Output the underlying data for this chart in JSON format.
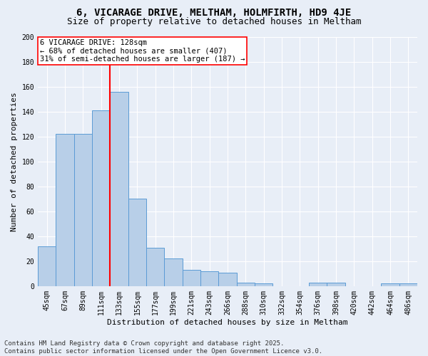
{
  "title": "6, VICARAGE DRIVE, MELTHAM, HOLMFIRTH, HD9 4JE",
  "subtitle": "Size of property relative to detached houses in Meltham",
  "xlabel": "Distribution of detached houses by size in Meltham",
  "ylabel": "Number of detached properties",
  "categories": [
    "45sqm",
    "67sqm",
    "89sqm",
    "111sqm",
    "133sqm",
    "155sqm",
    "177sqm",
    "199sqm",
    "221sqm",
    "243sqm",
    "266sqm",
    "288sqm",
    "310sqm",
    "332sqm",
    "354sqm",
    "376sqm",
    "398sqm",
    "420sqm",
    "442sqm",
    "464sqm",
    "486sqm"
  ],
  "values": [
    32,
    122,
    122,
    141,
    156,
    70,
    31,
    22,
    13,
    12,
    11,
    3,
    2,
    0,
    0,
    3,
    3,
    0,
    0,
    2,
    2
  ],
  "bar_color": "#b8cfe8",
  "bar_edge_color": "#5b9bd5",
  "vline_x_index": 4,
  "vline_color": "red",
  "annotation_line1": "6 VICARAGE DRIVE: 128sqm",
  "annotation_line2": "← 68% of detached houses are smaller (407)",
  "annotation_line3": "31% of semi-detached houses are larger (187) →",
  "annotation_box_color": "white",
  "annotation_box_edge": "red",
  "ylim": [
    0,
    200
  ],
  "yticks": [
    0,
    20,
    40,
    60,
    80,
    100,
    120,
    140,
    160,
    180,
    200
  ],
  "background_color": "#e8eef7",
  "grid_color": "white",
  "footer_line1": "Contains HM Land Registry data © Crown copyright and database right 2025.",
  "footer_line2": "Contains public sector information licensed under the Open Government Licence v3.0.",
  "title_fontsize": 10,
  "subtitle_fontsize": 9,
  "axis_label_fontsize": 8,
  "tick_fontsize": 7,
  "annotation_fontsize": 7.5,
  "footer_fontsize": 6.5
}
